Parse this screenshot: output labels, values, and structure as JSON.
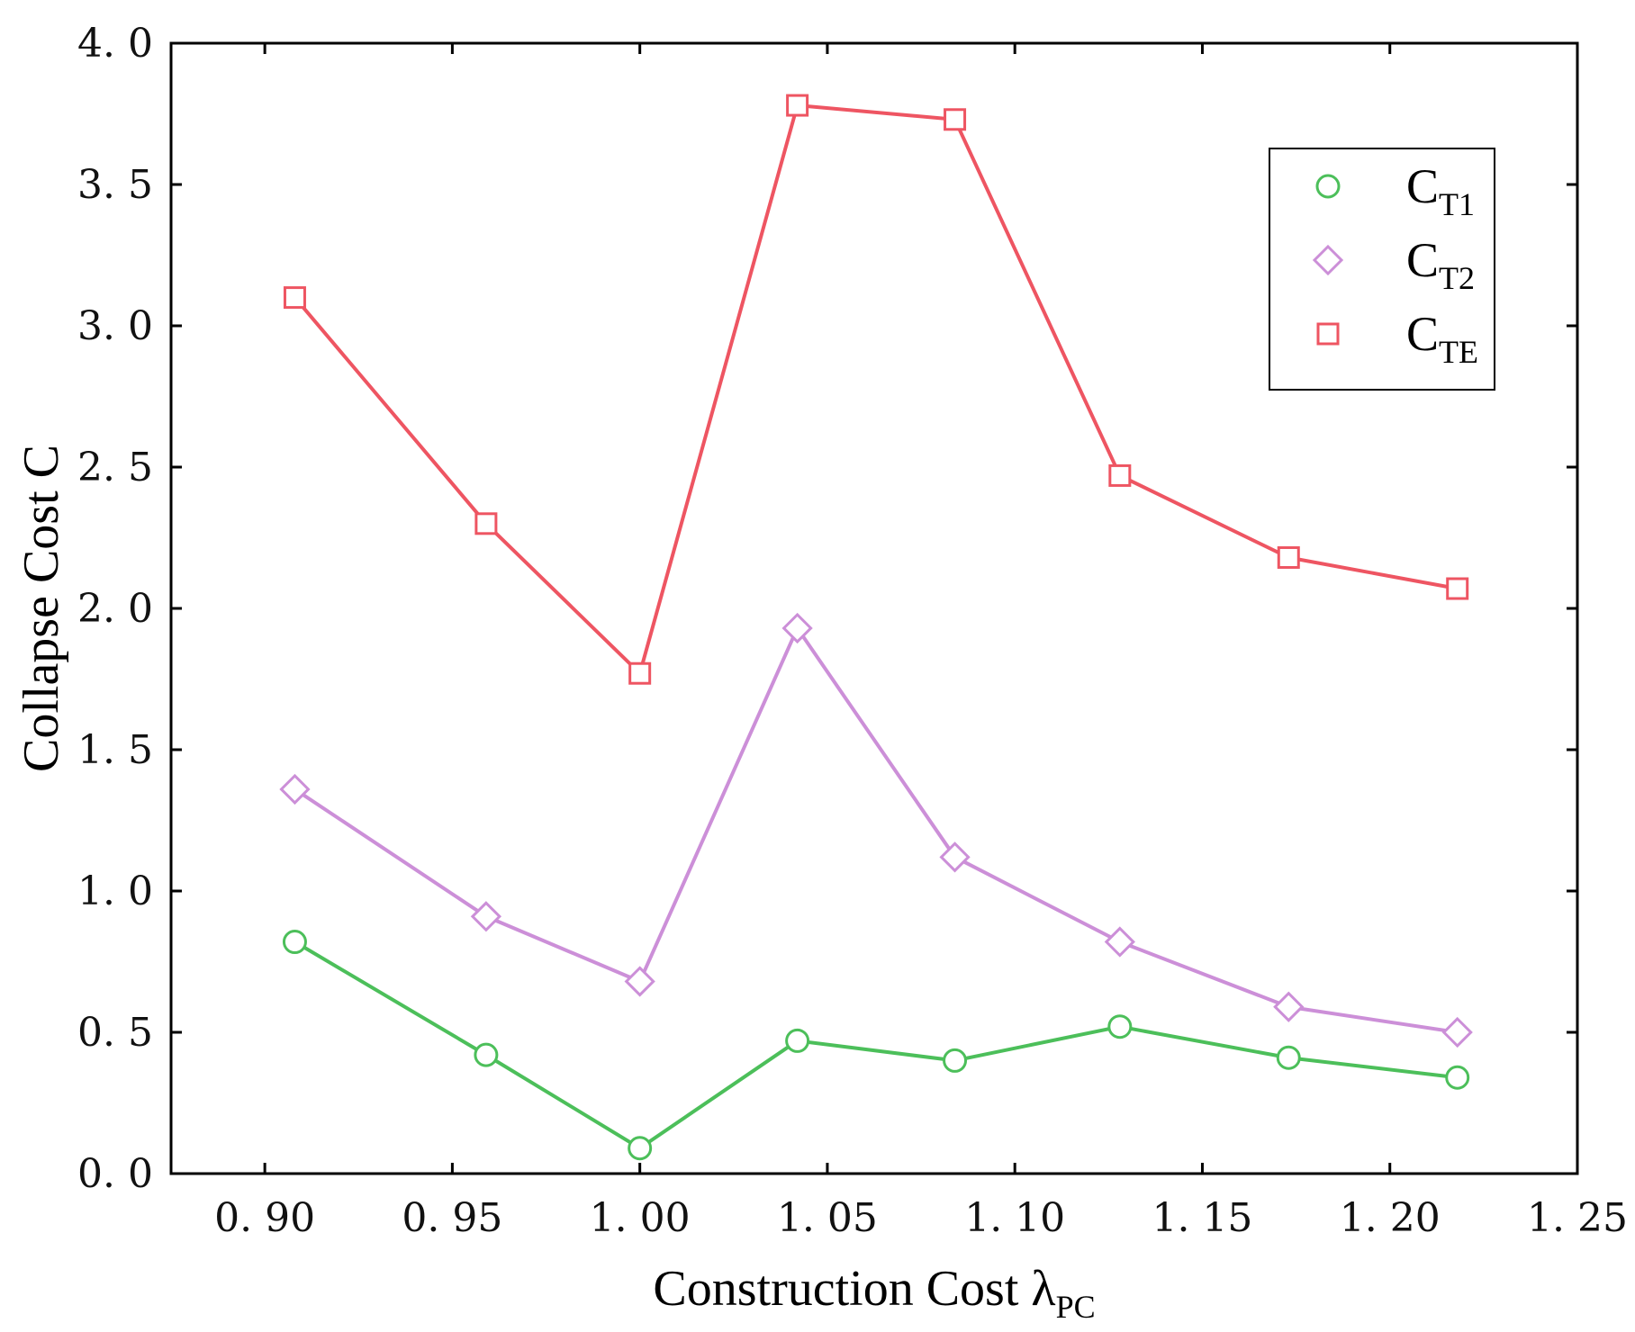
{
  "chart_data": {
    "type": "line",
    "title": "",
    "xlabel": "Construction Cost λ",
    "xlabel_subscript": "PC",
    "ylabel": "Collapse Cost C",
    "xlim": [
      0.875,
      1.25
    ],
    "ylim": [
      0.0,
      4.0
    ],
    "xticks": [
      0.9,
      0.95,
      1.0,
      1.05,
      1.1,
      1.15,
      1.2,
      1.25
    ],
    "xtick_labels": [
      "0. 90",
      "0. 95",
      "1. 00",
      "1. 05",
      "1. 10",
      "1. 15",
      "1. 20",
      "1. 25"
    ],
    "yticks": [
      0.0,
      0.5,
      1.0,
      1.5,
      2.0,
      2.5,
      3.0,
      3.5,
      4.0
    ],
    "ytick_labels": [
      "0. 0",
      "0. 5",
      "1. 0",
      "1. 5",
      "2. 0",
      "2. 5",
      "3. 0",
      "3. 5",
      "4. 0"
    ],
    "grid": false,
    "legend_position": "top-right",
    "x": [
      0.908,
      0.959,
      1.0,
      1.042,
      1.084,
      1.128,
      1.173,
      1.218
    ],
    "series": [
      {
        "name": "C",
        "subscript": "T1",
        "color": "#4cbf5a",
        "marker": "circle",
        "values": [
          0.82,
          0.42,
          0.09,
          0.47,
          0.4,
          0.52,
          0.41,
          0.34
        ]
      },
      {
        "name": "C",
        "subscript": "T2",
        "color": "#cc8fd8",
        "marker": "diamond",
        "values": [
          1.36,
          0.91,
          0.68,
          1.93,
          1.12,
          0.82,
          0.59,
          0.5
        ]
      },
      {
        "name": "C",
        "subscript": "TE",
        "color": "#ee5562",
        "marker": "square",
        "values": [
          3.1,
          2.3,
          1.77,
          3.78,
          3.73,
          2.47,
          2.18,
          2.07
        ]
      }
    ]
  }
}
